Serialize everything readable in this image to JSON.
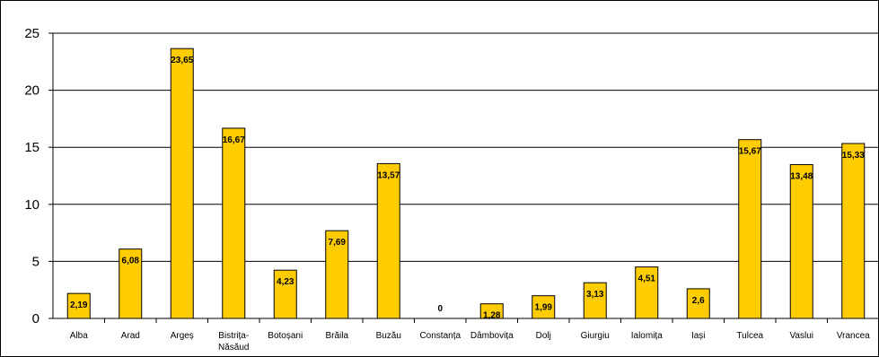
{
  "chart_data": {
    "type": "bar",
    "title": "",
    "xlabel": "",
    "ylabel": "",
    "ylim": [
      0,
      25
    ],
    "yticks": [
      "0",
      "5",
      "10",
      "15",
      "20",
      "25"
    ],
    "grid": true,
    "legend": "none",
    "categories": [
      [
        "Alba"
      ],
      [
        "Arad"
      ],
      [
        "Argeș"
      ],
      [
        "Bistrița-",
        "Năsăud"
      ],
      [
        "Botoșani"
      ],
      [
        "Brăila"
      ],
      [
        "Buzău"
      ],
      [
        "Constanța"
      ],
      [
        "Dâmbovița"
      ],
      [
        "Dolj"
      ],
      [
        "Giurgiu"
      ],
      [
        "Ialomița"
      ],
      [
        "Iași"
      ],
      [
        "Tulcea"
      ],
      [
        "Vaslui"
      ],
      [
        "Vrancea"
      ]
    ],
    "values": [
      2.19,
      6.08,
      23.65,
      16.67,
      4.23,
      7.69,
      13.57,
      0,
      1.28,
      1.99,
      3.13,
      4.51,
      2.6,
      15.67,
      13.48,
      15.33
    ],
    "data_labels": [
      "2,19",
      "6,08",
      "23,65",
      "16,67",
      "4,23",
      "7,69",
      "13,57",
      "0",
      "1,28",
      "1,99",
      "3,13",
      "4,51",
      "2,6",
      "15,67",
      "13,48",
      "15,33"
    ],
    "colors": {
      "bar": "#FFCC00",
      "bar_stroke": "#000000",
      "grid": "#000000",
      "frame": "#000000"
    }
  }
}
